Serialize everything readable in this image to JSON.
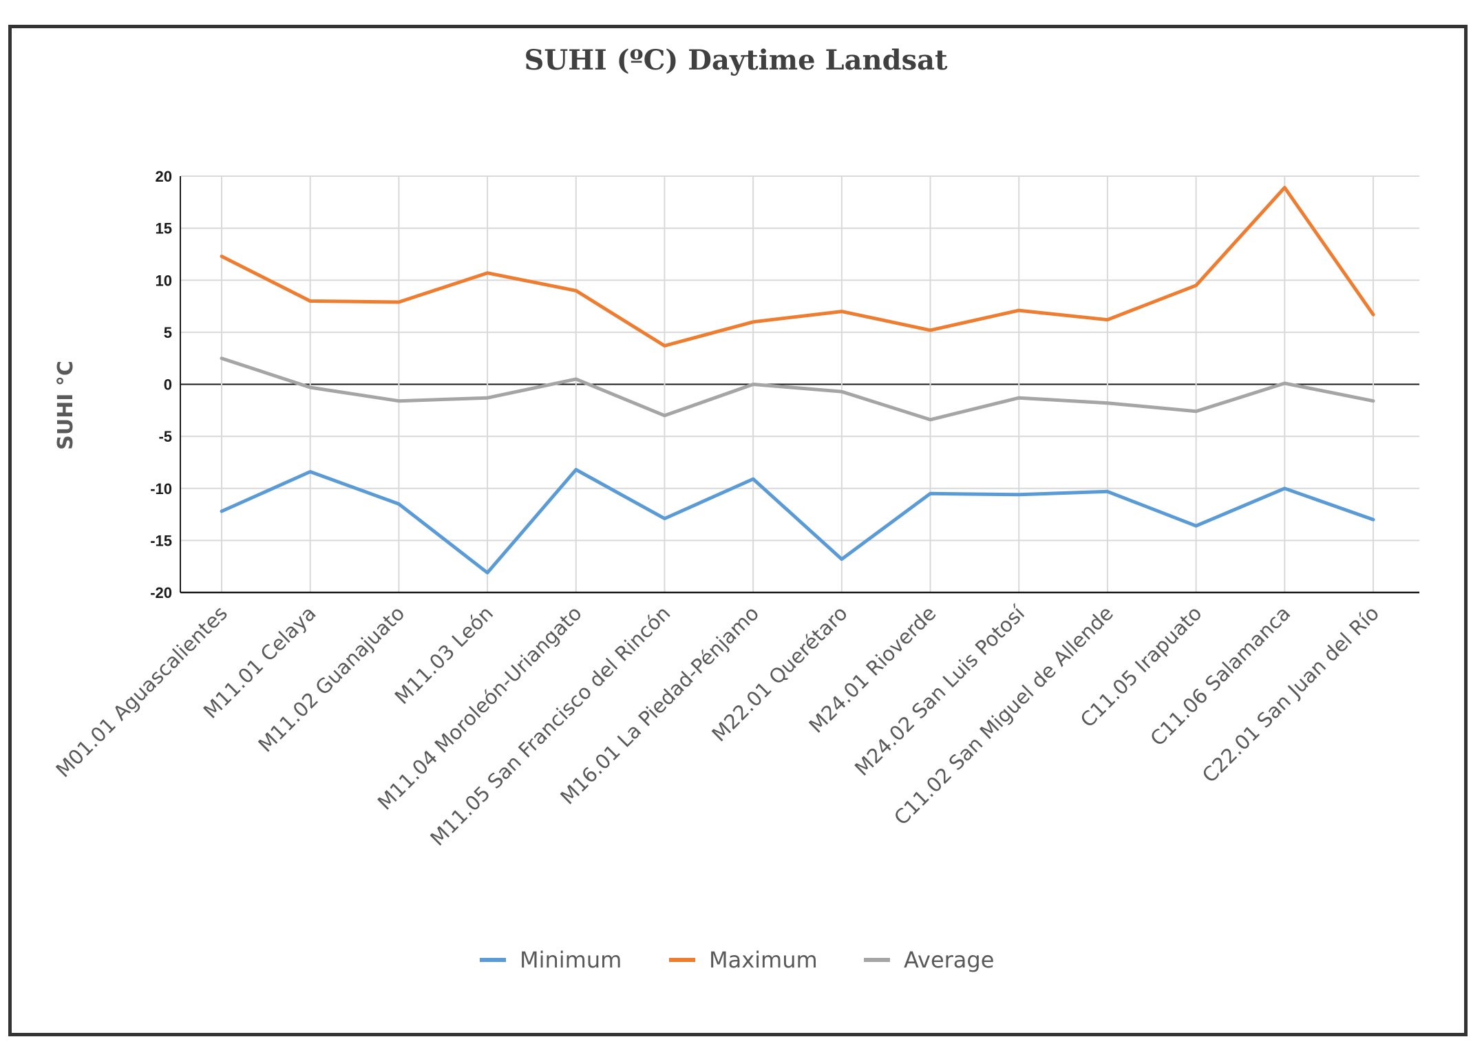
{
  "chart_data": {
    "type": "line",
    "title": "SUHI (ºC) Daytime Landsat",
    "xlabel": "",
    "ylabel": "SUHI °C",
    "ylim": [
      -20,
      20
    ],
    "yticks": [
      20,
      15,
      10,
      5,
      0,
      -5,
      -10,
      -15,
      -20
    ],
    "grid": true,
    "legend_position": "bottom",
    "categories": [
      "M01.01 Aguascalientes",
      "M11.01 Celaya",
      "M11.02 Guanajuato",
      "M11.03 León",
      "M11.04 Moroleón-Uriangato",
      "M11.05 San Francisco del Rincón",
      "M16.01 La Piedad-Pénjamo",
      "M22.01 Querétaro",
      "M24.01 Rioverde",
      "M24.02 San Luis Potosí",
      "C11.02 San Miguel de Allende",
      "C11.05 Irapuato",
      "C11.06 Salamanca",
      "C22.01 San Juan del Río"
    ],
    "series": [
      {
        "name": "Minimum",
        "color": "#5b9bd5",
        "values": [
          -12.2,
          -8.4,
          -11.5,
          -18.1,
          -8.2,
          -12.9,
          -9.1,
          -16.8,
          -10.5,
          -10.6,
          -10.3,
          -13.6,
          -10.0,
          -13.0
        ]
      },
      {
        "name": "Maximum",
        "color": "#ed7d31",
        "values": [
          12.3,
          8.0,
          7.9,
          10.7,
          9.0,
          3.7,
          6.0,
          7.0,
          5.2,
          7.1,
          6.2,
          9.5,
          18.9,
          6.7
        ]
      },
      {
        "name": "Average",
        "color": "#a5a5a5",
        "values": [
          2.5,
          -0.3,
          -1.6,
          -1.3,
          0.5,
          -3.0,
          0.0,
          -0.7,
          -3.4,
          -1.3,
          -1.8,
          -2.6,
          0.1,
          -1.6
        ]
      }
    ]
  }
}
